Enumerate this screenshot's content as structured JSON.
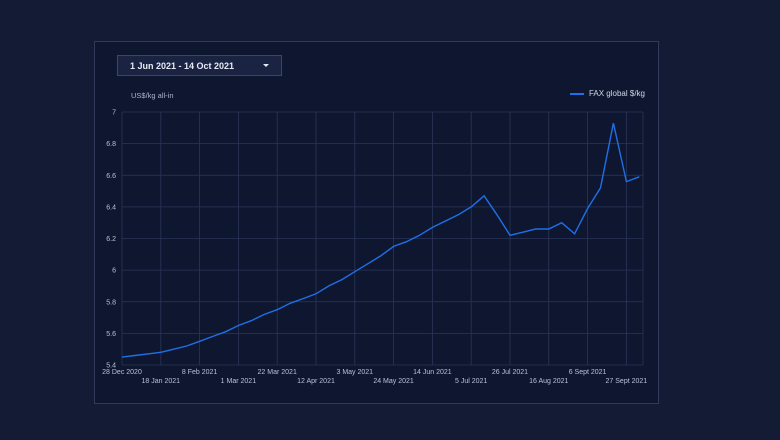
{
  "controls": {
    "date_range_label": "1 Jun 2021 - 14 Oct 2021",
    "caret_icon": "caret-down-icon"
  },
  "chart_data": {
    "type": "line",
    "ylabel": "US$/kg all-in",
    "ylim": [
      5.4,
      7.0
    ],
    "yticks": [
      "5.4",
      "5.6",
      "5.8",
      "6",
      "6.2",
      "6.4",
      "6.6",
      "6.8",
      "7"
    ],
    "xticks_upper": [
      "28 Dec 2020",
      "8 Feb 2021",
      "22 Mar 2021",
      "3 May 2021",
      "14 Jun 2021",
      "26 Jul 2021",
      "6 Sept 2021"
    ],
    "xticks_lower": [
      "18 Jan 2021",
      "1 Mar 2021",
      "12 Apr 2021",
      "24 May 2021",
      "5 Jul 2021",
      "16 Aug 2021",
      "27 Sept 2021"
    ],
    "legend_position": "top-right",
    "grid": true,
    "series": [
      {
        "name": "FAX global $/kg",
        "color": "#1f6fe8",
        "points": [
          [
            "2020-12-28",
            5.45
          ],
          [
            "2021-01-04",
            5.46
          ],
          [
            "2021-01-11",
            5.47
          ],
          [
            "2021-01-18",
            5.48
          ],
          [
            "2021-01-25",
            5.5
          ],
          [
            "2021-02-01",
            5.52
          ],
          [
            "2021-02-08",
            5.55
          ],
          [
            "2021-02-15",
            5.58
          ],
          [
            "2021-02-22",
            5.61
          ],
          [
            "2021-03-01",
            5.65
          ],
          [
            "2021-03-08",
            5.68
          ],
          [
            "2021-03-15",
            5.72
          ],
          [
            "2021-03-22",
            5.75
          ],
          [
            "2021-03-29",
            5.79
          ],
          [
            "2021-04-05",
            5.82
          ],
          [
            "2021-04-12",
            5.85
          ],
          [
            "2021-04-19",
            5.9
          ],
          [
            "2021-04-26",
            5.94
          ],
          [
            "2021-05-03",
            5.99
          ],
          [
            "2021-05-10",
            6.04
          ],
          [
            "2021-05-17",
            6.09
          ],
          [
            "2021-05-24",
            6.15
          ],
          [
            "2021-05-31",
            6.18
          ],
          [
            "2021-06-07",
            6.22
          ],
          [
            "2021-06-14",
            6.27
          ],
          [
            "2021-06-21",
            6.31
          ],
          [
            "2021-06-28",
            6.35
          ],
          [
            "2021-07-05",
            6.4
          ],
          [
            "2021-07-12",
            6.47
          ],
          [
            "2021-07-19",
            6.35
          ],
          [
            "2021-07-26",
            6.22
          ],
          [
            "2021-08-02",
            6.24
          ],
          [
            "2021-08-09",
            6.26
          ],
          [
            "2021-08-16",
            6.26
          ],
          [
            "2021-08-23",
            6.3
          ],
          [
            "2021-08-30",
            6.23
          ],
          [
            "2021-09-06",
            6.39
          ],
          [
            "2021-09-13",
            6.52
          ],
          [
            "2021-09-20",
            6.93
          ],
          [
            "2021-09-27",
            6.56
          ],
          [
            "2021-10-04",
            6.59
          ]
        ]
      }
    ]
  }
}
